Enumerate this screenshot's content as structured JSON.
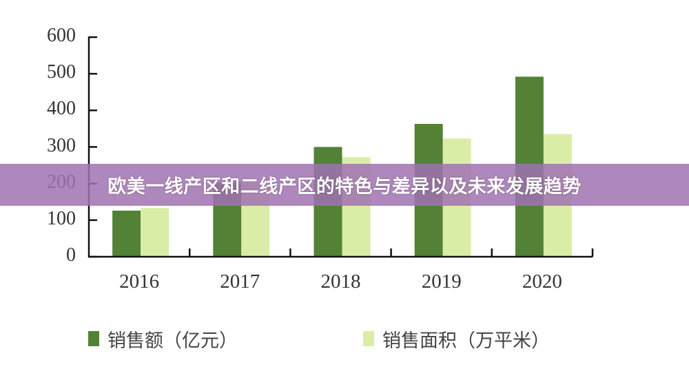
{
  "banner": {
    "title": "欧美一线产区和二线产区的特色与差异以及未来发展趋势"
  },
  "colors": {
    "series1": "#538135",
    "series2": "#DAEDA6",
    "axis": "#111111",
    "banner": "#A072B0"
  },
  "legend": {
    "items": [
      {
        "label": "销售额（亿元）",
        "color": "#538135"
      },
      {
        "label": "销售面积（万平米）",
        "color": "#DAEDA6"
      }
    ]
  },
  "chart_data": {
    "type": "bar",
    "title": "",
    "xlabel": "",
    "ylabel": "",
    "categories": [
      "2016",
      "2017",
      "2018",
      "2019",
      "2020"
    ],
    "series": [
      {
        "name": "销售额（亿元）",
        "values": [
          126,
          203,
          300,
          363,
          492
        ]
      },
      {
        "name": "销售面积（万平米）",
        "values": [
          133,
          200,
          272,
          323,
          335
        ]
      }
    ],
    "ylim": [
      0,
      600
    ],
    "yticks": [
      0,
      100,
      200,
      300,
      400,
      500,
      600
    ],
    "grid": false,
    "legend_position": "bottom"
  }
}
